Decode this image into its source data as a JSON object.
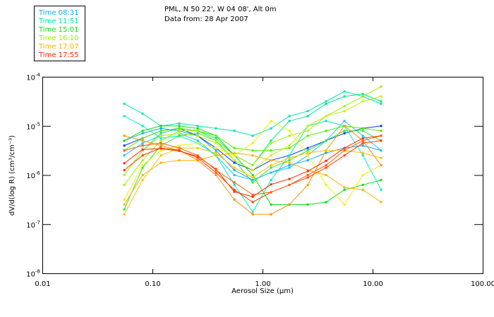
{
  "chart_data": {
    "type": "line",
    "title": "PML, N 50 22', W 04 08', Alt 0m",
    "subtitle": "Data from: 28 Apr 2007",
    "xlabel": "Aerosol Size (µm)",
    "ylabel": "dV/d(log R)  (cm³/cm⁻³)",
    "xscale": "log",
    "yscale": "log",
    "xlim": [
      0.01,
      100
    ],
    "ylim": [
      1e-08,
      0.0001
    ],
    "x_ticks": [
      {
        "v": 0.01,
        "label": "0.01"
      },
      {
        "v": 0.1,
        "label": "0.10"
      },
      {
        "v": 1,
        "label": "1.00"
      },
      {
        "v": 10,
        "label": "10.00"
      },
      {
        "v": 100,
        "label": "100.00"
      }
    ],
    "y_ticks": [
      {
        "exp": -4,
        "label": "10",
        "sup": "-4"
      },
      {
        "exp": -5,
        "label": "10",
        "sup": "-5"
      },
      {
        "exp": -6,
        "label": "10",
        "sup": "-6"
      },
      {
        "exp": -7,
        "label": "10",
        "sup": "-7"
      },
      {
        "exp": -8,
        "label": "10",
        "sup": "-8"
      }
    ],
    "legend_placement": "top-left",
    "legend": [
      {
        "label": "Time 08:31",
        "color": "#10a8f8"
      },
      {
        "label": "Time 11:51",
        "color": "#00e8a8"
      },
      {
        "label": "Time 15:01",
        "color": "#10e010"
      },
      {
        "label": "Time 16:10",
        "color": "#a0f000"
      },
      {
        "label": "Time 17:07",
        "color": "#ffb000"
      },
      {
        "label": "Time 17:55",
        "color": "#ff2800"
      }
    ],
    "x_log10": [
      -1.256,
      -1.089,
      -0.923,
      -0.756,
      -0.589,
      -0.423,
      -0.256,
      -0.089,
      0.077,
      0.244,
      0.411,
      0.577,
      0.744,
      0.911,
      1.077
    ],
    "series_log10": [
      {
        "group": 0,
        "color": "#10a8f8",
        "values": [
          -5.3,
          -5.15,
          -5.05,
          -5.1,
          -5.2,
          -5.5,
          -5.9,
          -6.1,
          -5.95,
          -5.8,
          -5.7,
          -5.55,
          -5.45,
          -5.4,
          -5.5
        ]
      },
      {
        "group": 0,
        "color": "#0040ff",
        "values": [
          -5.4,
          -5.25,
          -5.1,
          -5.05,
          -5.2,
          -5.45,
          -5.75,
          -5.9,
          -5.7,
          -5.6,
          -5.45,
          -5.3,
          -5.15,
          -5.05,
          -5.0
        ]
      },
      {
        "group": 0,
        "color": "#20c0ff",
        "values": [
          -5.6,
          -5.35,
          -5.2,
          -5.15,
          -5.3,
          -5.6,
          -6.0,
          -6.1,
          -5.95,
          -5.85,
          -5.6,
          -5.3,
          -4.9,
          -5.2,
          -5.5
        ]
      },
      {
        "group": 1,
        "color": "#00e8a8",
        "values": [
          -4.55,
          -4.75,
          -5.0,
          -4.95,
          -5.0,
          -5.05,
          -5.1,
          -5.2,
          -5.05,
          -4.8,
          -4.7,
          -4.5,
          -4.3,
          -4.4,
          -4.55
        ]
      },
      {
        "group": 1,
        "color": "#00f0c0",
        "values": [
          -4.8,
          -5.0,
          -5.25,
          -5.2,
          -5.35,
          -5.6,
          -6.2,
          -6.75,
          -6.1,
          -5.6,
          -5.0,
          -4.9,
          -5.0,
          -5.6,
          -6.3
        ]
      },
      {
        "group": 1,
        "color": "#00e890",
        "values": [
          -6.0,
          -5.5,
          -5.15,
          -5.05,
          -5.1,
          -5.25,
          -5.6,
          -5.8,
          -5.3,
          -4.9,
          -4.8,
          -4.55,
          -4.4,
          -4.35,
          -4.5
        ]
      },
      {
        "group": 2,
        "color": "#10e010",
        "values": [
          -5.3,
          -5.1,
          -5.0,
          -5.0,
          -5.05,
          -5.2,
          -5.6,
          -6.0,
          -6.6,
          -6.6,
          -6.6,
          -6.55,
          -6.3,
          -6.2,
          -6.1
        ]
      },
      {
        "group": 2,
        "color": "#30e830",
        "values": [
          -6.7,
          -5.85,
          -5.4,
          -5.2,
          -5.15,
          -5.3,
          -5.7,
          -6.15,
          -5.85,
          -5.7,
          -5.5,
          -5.3,
          -5.1,
          -5.1,
          -5.3
        ]
      },
      {
        "group": 2,
        "color": "#50f000",
        "values": [
          -5.5,
          -5.25,
          -5.1,
          -5.05,
          -5.1,
          -5.2,
          -5.45,
          -5.5,
          -5.5,
          -5.45,
          -5.2,
          -5.1,
          -5.0,
          -5.05,
          -5.1
        ]
      },
      {
        "group": 3,
        "color": "#a0f000",
        "values": [
          -6.2,
          -5.7,
          -5.3,
          -5.1,
          -5.1,
          -5.3,
          -5.6,
          -5.8,
          -5.35,
          -5.2,
          -5.1,
          -4.8,
          -4.6,
          -4.4,
          -4.2
        ]
      },
      {
        "group": 3,
        "color": "#c0f000",
        "values": [
          -6.0,
          -5.5,
          -5.2,
          -5.15,
          -5.2,
          -5.35,
          -5.7,
          -5.9,
          -5.6,
          -5.4,
          -5.0,
          -4.8,
          -4.7,
          -4.5,
          -4.4
        ]
      },
      {
        "group": 3,
        "color": "#f0f000",
        "values": [
          -6.5,
          -5.8,
          -5.5,
          -5.4,
          -5.35,
          -5.45,
          -5.6,
          -5.35,
          -4.9,
          -5.1,
          -5.6,
          -6.2,
          -6.6,
          -6.0,
          -5.8
        ]
      },
      {
        "group": 4,
        "color": "#ffb000",
        "values": [
          -6.6,
          -6.0,
          -5.75,
          -5.7,
          -5.7,
          -5.6,
          -5.55,
          -5.6,
          -5.7,
          -5.75,
          -5.9,
          -6.0,
          -6.25,
          -6.3,
          -6.55
        ]
      },
      {
        "group": 4,
        "color": "#ff9000",
        "values": [
          -5.2,
          -5.3,
          -5.4,
          -5.5,
          -5.7,
          -6.0,
          -6.5,
          -6.8,
          -6.8,
          -6.6,
          -6.2,
          -5.5,
          -5.0,
          -5.3,
          -5.8
        ]
      },
      {
        "group": 4,
        "color": "#ffc000",
        "values": [
          -6.8,
          -6.1,
          -5.6,
          -5.45,
          -5.45,
          -5.55,
          -5.85,
          -6.05,
          -5.8,
          -5.65,
          -5.55,
          -5.5,
          -5.5,
          -5.55,
          -5.65
        ]
      },
      {
        "group": 5,
        "color": "#ff2800",
        "values": [
          -5.76,
          -5.48,
          -5.46,
          -5.51,
          -5.62,
          -5.88,
          -6.34,
          -6.44,
          -6.19,
          -6.08,
          -5.92,
          -5.71,
          -5.45,
          -5.25,
          -5.2
        ]
      },
      {
        "group": 5,
        "color": "#ff3c00",
        "values": [
          -5.9,
          -5.6,
          -5.45,
          -5.5,
          -5.65,
          -5.95,
          -6.3,
          -6.55,
          -6.35,
          -6.2,
          -6.05,
          -5.85,
          -5.6,
          -5.35,
          -5.3
        ]
      },
      {
        "group": 5,
        "color": "#ff6000",
        "values": [
          -5.5,
          -5.4,
          -5.35,
          -5.45,
          -5.6,
          -5.9,
          -6.15,
          -6.4,
          -6.35,
          -6.2,
          -6.0,
          -5.8,
          -5.5,
          -5.3,
          -5.2
        ]
      }
    ]
  }
}
